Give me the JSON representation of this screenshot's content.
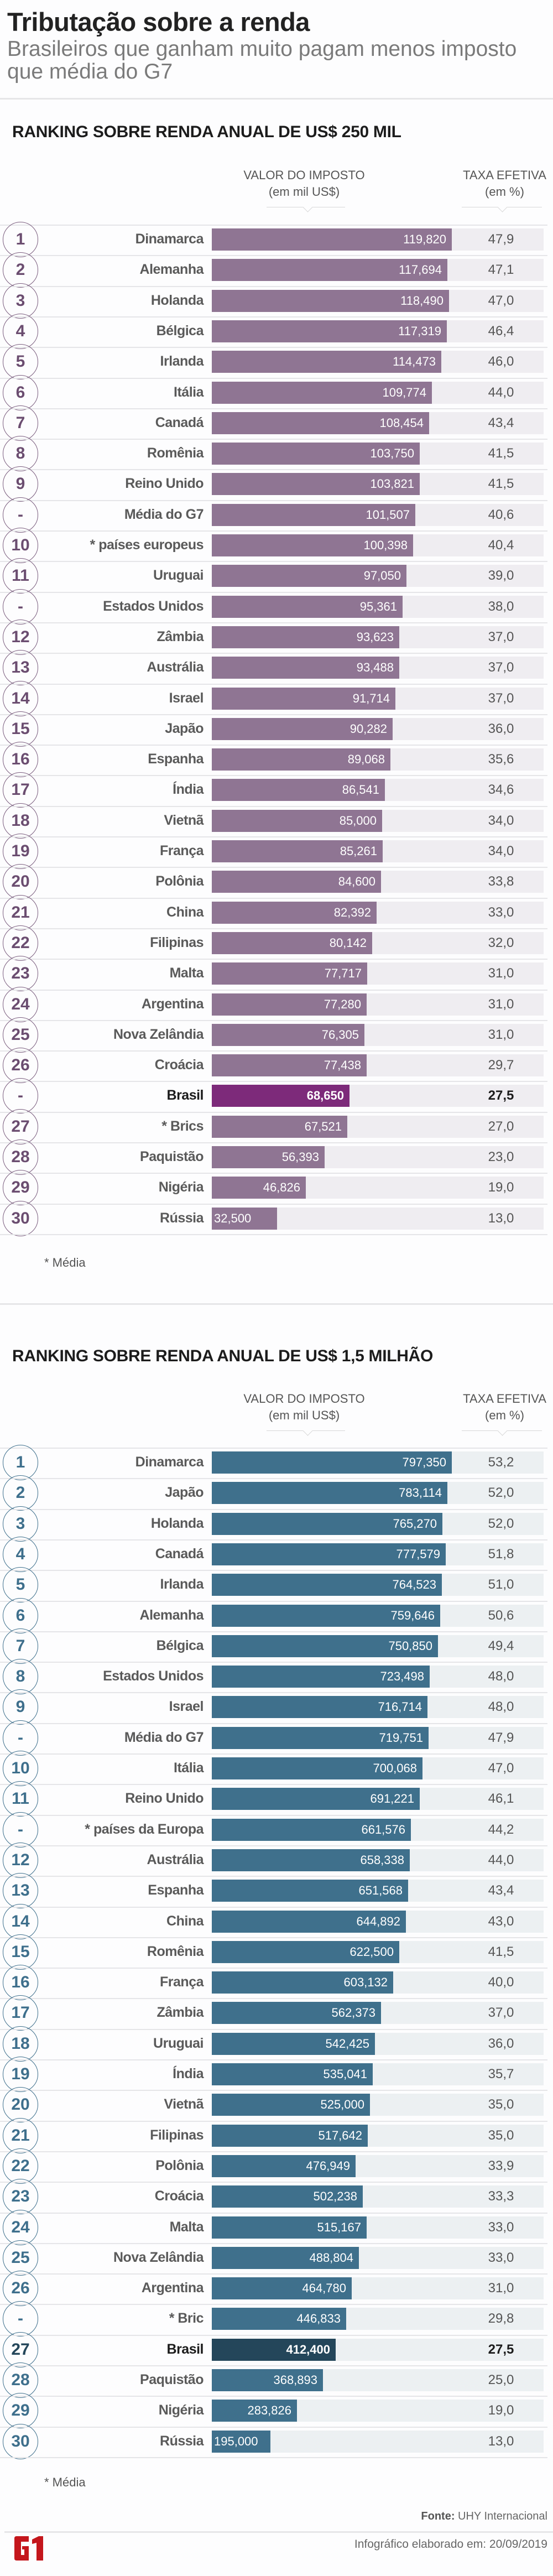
{
  "header": {
    "title": "Tributação sobre a renda",
    "subtitle": "Brasileiros que ganham muito pagam menos imposto que média do G7"
  },
  "columns": {
    "value": [
      "VALOR DO IMPOSTO",
      "(em mil US$)"
    ],
    "rate": [
      "TAXA EFETIVA",
      "(em %)"
    ]
  },
  "colors": {
    "purple_bar": "#8f7593",
    "purple_highlight": "#7d2a7a",
    "purple_bg": "#efedf1",
    "purple_circle": "#7a5d7e",
    "purple_number": "#6b4d70",
    "blue_bar": "#3f708c",
    "blue_highlight": "#24465a",
    "blue_bg": "#ecf0f2",
    "blue_circle": "#3e6f8c",
    "blue_number": "#3e6f8c",
    "blue_number_highlight": "#24465a",
    "logo_red": "#c4161c"
  },
  "chart_data": [
    {
      "type": "bar",
      "title": "RANKING SOBRE RENDA ANUAL DE US$ 250 MIL",
      "xlabel": "VALOR DO IMPOSTO (em mil US$)",
      "ylabel": "",
      "note": "* Média",
      "highlight": "Brasil",
      "rows": [
        {
          "rank": "1",
          "name": "Dinamarca",
          "value": 119820,
          "value_label": "119,820",
          "rate": "47,9"
        },
        {
          "rank": "2",
          "name": "Alemanha",
          "value": 117694,
          "value_label": "117,694",
          "rate": "47,1"
        },
        {
          "rank": "3",
          "name": "Holanda",
          "value": 118490,
          "value_label": "118,490",
          "rate": "47,0"
        },
        {
          "rank": "4",
          "name": "Bélgica",
          "value": 117319,
          "value_label": "117,319",
          "rate": "46,4"
        },
        {
          "rank": "5",
          "name": "Irlanda",
          "value": 114473,
          "value_label": "114,473",
          "rate": "46,0"
        },
        {
          "rank": "6",
          "name": "Itália",
          "value": 109774,
          "value_label": "109,774",
          "rate": "44,0"
        },
        {
          "rank": "7",
          "name": "Canadá",
          "value": 108454,
          "value_label": "108,454",
          "rate": "43,4"
        },
        {
          "rank": "8",
          "name": "Romênia",
          "value": 103750,
          "value_label": "103,750",
          "rate": "41,5"
        },
        {
          "rank": "9",
          "name": "Reino Unido",
          "value": 103821,
          "value_label": "103,821",
          "rate": "41,5"
        },
        {
          "rank": "-",
          "name": "Média do G7",
          "value": 101507,
          "value_label": "101,507",
          "rate": "40,6"
        },
        {
          "rank": "10",
          "name": "* países europeus",
          "value": 100398,
          "value_label": "100,398",
          "rate": "40,4"
        },
        {
          "rank": "11",
          "name": "Uruguai",
          "value": 97050,
          "value_label": "97,050",
          "rate": "39,0"
        },
        {
          "rank": "-",
          "name": "Estados Unidos",
          "value": 95361,
          "value_label": "95,361",
          "rate": "38,0"
        },
        {
          "rank": "12",
          "name": "Zâmbia",
          "value": 93623,
          "value_label": "93,623",
          "rate": "37,0"
        },
        {
          "rank": "13",
          "name": "Austrália",
          "value": 93488,
          "value_label": "93,488",
          "rate": "37,0"
        },
        {
          "rank": "14",
          "name": "Israel",
          "value": 91714,
          "value_label": "91,714",
          "rate": "37,0"
        },
        {
          "rank": "15",
          "name": "Japão",
          "value": 90282,
          "value_label": "90,282",
          "rate": "36,0"
        },
        {
          "rank": "16",
          "name": "Espanha",
          "value": 89068,
          "value_label": "89,068",
          "rate": "35,6"
        },
        {
          "rank": "17",
          "name": "Índia",
          "value": 86541,
          "value_label": "86,541",
          "rate": "34,6"
        },
        {
          "rank": "18",
          "name": "Vietnã",
          "value": 85000,
          "value_label": "85,000",
          "rate": "34,0"
        },
        {
          "rank": "19",
          "name": "França",
          "value": 85261,
          "value_label": "85,261",
          "rate": "34,0"
        },
        {
          "rank": "20",
          "name": "Polônia",
          "value": 84600,
          "value_label": "84,600",
          "rate": "33,8"
        },
        {
          "rank": "21",
          "name": "China",
          "value": 82392,
          "value_label": "82,392",
          "rate": "33,0"
        },
        {
          "rank": "22",
          "name": "Filipinas",
          "value": 80142,
          "value_label": "80,142",
          "rate": "32,0"
        },
        {
          "rank": "23",
          "name": "Malta",
          "value": 77717,
          "value_label": "77,717",
          "rate": "31,0"
        },
        {
          "rank": "24",
          "name": "Argentina",
          "value": 77280,
          "value_label": "77,280",
          "rate": "31,0"
        },
        {
          "rank": "25",
          "name": "Nova Zelândia",
          "value": 76305,
          "value_label": "76,305",
          "rate": "31,0"
        },
        {
          "rank": "26",
          "name": "Croácia",
          "value": 77438,
          "value_label": "77,438",
          "rate": "29,7"
        },
        {
          "rank": "-",
          "name": "Brasil",
          "value": 68650,
          "value_label": "68,650",
          "rate": "27,5",
          "highlight": true
        },
        {
          "rank": "27",
          "name": "* Brics",
          "value": 67521,
          "value_label": "67,521",
          "rate": "27,0"
        },
        {
          "rank": "28",
          "name": "Paquistão",
          "value": 56393,
          "value_label": "56,393",
          "rate": "23,0"
        },
        {
          "rank": "29",
          "name": "Nigéria",
          "value": 46826,
          "value_label": "46,826",
          "rate": "19,0"
        },
        {
          "rank": "30",
          "name": "Rússia",
          "value": 32500,
          "value_label": "32,500",
          "rate": "13,0"
        }
      ]
    },
    {
      "type": "bar",
      "title": "RANKING SOBRE RENDA ANUAL DE US$ 1,5 MILHÃO",
      "xlabel": "VALOR DO IMPOSTO (em mil US$)",
      "ylabel": "",
      "note": "* Média",
      "highlight": "Brasil",
      "rows": [
        {
          "rank": "1",
          "name": "Dinamarca",
          "value": 797350,
          "value_label": "797,350",
          "rate": "53,2"
        },
        {
          "rank": "2",
          "name": "Japão",
          "value": 783114,
          "value_label": "783,114",
          "rate": "52,0"
        },
        {
          "rank": "3",
          "name": "Holanda",
          "value": 765270,
          "value_label": "765,270",
          "rate": "52,0"
        },
        {
          "rank": "4",
          "name": "Canadá",
          "value": 777579,
          "value_label": "777,579",
          "rate": "51,8"
        },
        {
          "rank": "5",
          "name": "Irlanda",
          "value": 764523,
          "value_label": "764,523",
          "rate": "51,0"
        },
        {
          "rank": "6",
          "name": "Alemanha",
          "value": 759646,
          "value_label": "759,646",
          "rate": "50,6"
        },
        {
          "rank": "7",
          "name": "Bélgica",
          "value": 750850,
          "value_label": "750,850",
          "rate": "49,4"
        },
        {
          "rank": "8",
          "name": "Estados Unidos",
          "value": 723498,
          "value_label": "723,498",
          "rate": "48,0"
        },
        {
          "rank": "9",
          "name": "Israel",
          "value": 716714,
          "value_label": "716,714",
          "rate": "48,0"
        },
        {
          "rank": "-",
          "name": "Média do G7",
          "value": 719751,
          "value_label": "719,751",
          "rate": "47,9"
        },
        {
          "rank": "10",
          "name": "Itália",
          "value": 700068,
          "value_label": "700,068",
          "rate": "47,0"
        },
        {
          "rank": "11",
          "name": "Reino Unido",
          "value": 691221,
          "value_label": "691,221",
          "rate": "46,1"
        },
        {
          "rank": "-",
          "name": "* países da Europa",
          "value": 661576,
          "value_label": "661,576",
          "rate": "44,2"
        },
        {
          "rank": "12",
          "name": "Austrália",
          "value": 658338,
          "value_label": "658,338",
          "rate": "44,0"
        },
        {
          "rank": "13",
          "name": "Espanha",
          "value": 651568,
          "value_label": "651,568",
          "rate": "43,4"
        },
        {
          "rank": "14",
          "name": "China",
          "value": 644892,
          "value_label": "644,892",
          "rate": "43,0"
        },
        {
          "rank": "15",
          "name": "Romênia",
          "value": 622500,
          "value_label": "622,500",
          "rate": "41,5"
        },
        {
          "rank": "16",
          "name": "França",
          "value": 603132,
          "value_label": "603,132",
          "rate": "40,0"
        },
        {
          "rank": "17",
          "name": "Zâmbia",
          "value": 562373,
          "value_label": "562,373",
          "rate": "37,0"
        },
        {
          "rank": "18",
          "name": "Uruguai",
          "value": 542425,
          "value_label": "542,425",
          "rate": "36,0"
        },
        {
          "rank": "19",
          "name": "Índia",
          "value": 535041,
          "value_label": "535,041",
          "rate": "35,7"
        },
        {
          "rank": "20",
          "name": "Vietnã",
          "value": 525000,
          "value_label": "525,000",
          "rate": "35,0"
        },
        {
          "rank": "21",
          "name": "Filipinas",
          "value": 517642,
          "value_label": "517,642",
          "rate": "35,0"
        },
        {
          "rank": "22",
          "name": "Polônia",
          "value": 476949,
          "value_label": "476,949",
          "rate": "33,9"
        },
        {
          "rank": "23",
          "name": "Croácia",
          "value": 502238,
          "value_label": "502,238",
          "rate": "33,3"
        },
        {
          "rank": "24",
          "name": "Malta",
          "value": 515167,
          "value_label": "515,167",
          "rate": "33,0"
        },
        {
          "rank": "25",
          "name": "Nova Zelândia",
          "value": 488804,
          "value_label": "488,804",
          "rate": "33,0"
        },
        {
          "rank": "26",
          "name": "Argentina",
          "value": 464780,
          "value_label": "464,780",
          "rate": "31,0"
        },
        {
          "rank": "-",
          "name": "* Bric",
          "value": 446833,
          "value_label": "446,833",
          "rate": "29,8"
        },
        {
          "rank": "27",
          "name": "Brasil",
          "value": 412400,
          "value_label": "412,400",
          "rate": "27,5",
          "highlight": true
        },
        {
          "rank": "28",
          "name": "Paquistão",
          "value": 368893,
          "value_label": "368,893",
          "rate": "25,0"
        },
        {
          "rank": "29",
          "name": "Nigéria",
          "value": 283826,
          "value_label": "283,826",
          "rate": "19,0"
        },
        {
          "rank": "30",
          "name": "Rússia",
          "value": 195000,
          "value_label": "195,000",
          "rate": "13,0"
        }
      ]
    }
  ],
  "footer": {
    "source_label": "Fonte:",
    "source_value": "UHY Internacional",
    "created": "Infográfico elaborado em: 20/09/2019",
    "logo": "G1"
  }
}
